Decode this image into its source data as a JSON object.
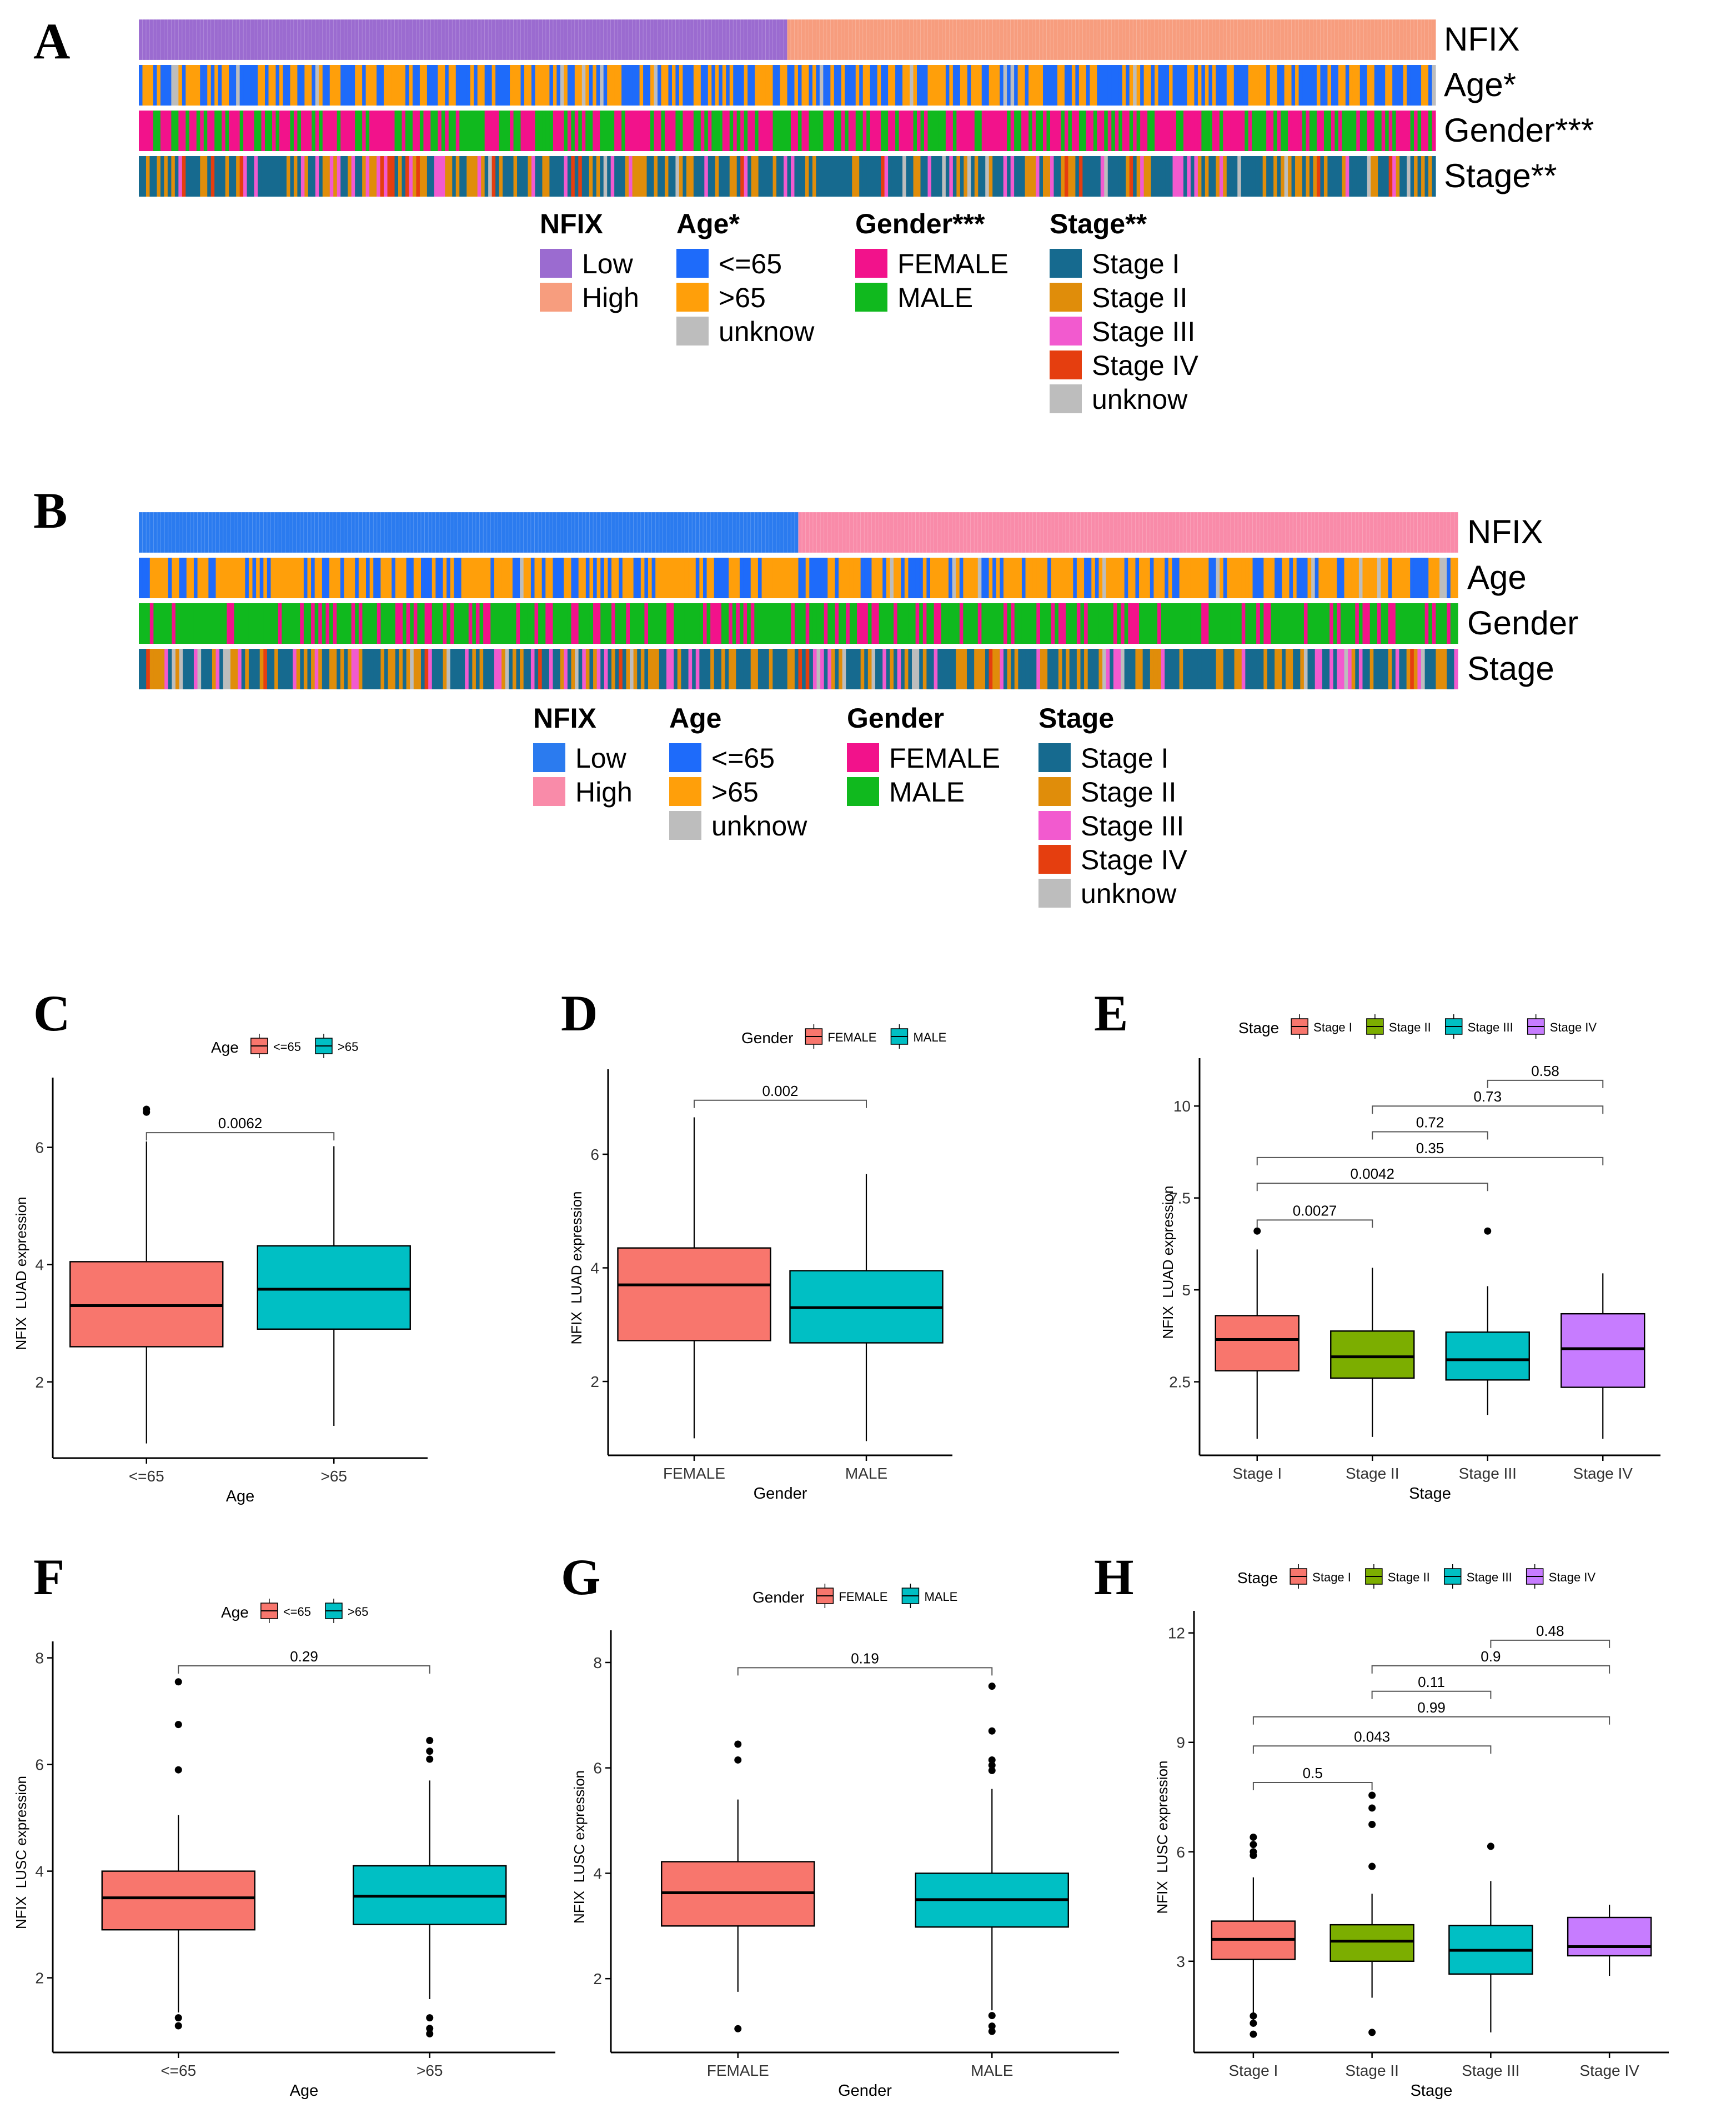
{
  "figure": {
    "panel_letters": [
      "A",
      "B",
      "C",
      "D",
      "E",
      "F",
      "G",
      "H"
    ]
  },
  "colors": {
    "nfix_low_A": "#9B6BD0",
    "nfix_high_A": "#F79D7E",
    "nfix_low_B": "#2B7BEF",
    "nfix_high_B": "#F98BA9",
    "age_le65": "#1E6BFA",
    "age_gt65": "#FF9F0A",
    "unknow": "#BDBDBD",
    "female": "#F2128B",
    "male": "#10B91E",
    "stage1": "#166A8F",
    "stage2": "#E08D0A",
    "stage3": "#F25ACF",
    "stage4": "#E53E0F",
    "box_red": "#F8766D",
    "box_teal": "#00BFC4",
    "box_green": "#7CAE00",
    "box_purple": "#C77CFF"
  },
  "heatmaps": [
    {
      "id": "A",
      "tracks": [
        "NFIX",
        "Age*",
        "Gender***",
        "Stage**"
      ],
      "legend": [
        {
          "title": "NFIX",
          "items": [
            "Low",
            "High"
          ],
          "colors": [
            "#9B6BD0",
            "#F79D7E"
          ]
        },
        {
          "title": "Age*",
          "items": [
            "<=65",
            ">65",
            "unknow"
          ],
          "colors": [
            "#1E6BFA",
            "#FF9F0A",
            "#BDBDBD"
          ]
        },
        {
          "title": "Gender***",
          "items": [
            "FEMALE",
            "MALE"
          ],
          "colors": [
            "#F2128B",
            "#10B91E"
          ]
        },
        {
          "title": "Stage**",
          "items": [
            "Stage I",
            "Stage II",
            "Stage III",
            "Stage IV",
            "unknow"
          ],
          "colors": [
            "#166A8F",
            "#E08D0A",
            "#F25ACF",
            "#E53E0F",
            "#BDBDBD"
          ]
        }
      ]
    },
    {
      "id": "B",
      "tracks": [
        "NFIX",
        "Age",
        "Gender",
        "Stage"
      ],
      "legend": [
        {
          "title": "NFIX",
          "items": [
            "Low",
            "High"
          ],
          "colors": [
            "#2B7BEF",
            "#F98BA9"
          ]
        },
        {
          "title": "Age",
          "items": [
            "<=65",
            ">65",
            "unknow"
          ],
          "colors": [
            "#1E6BFA",
            "#FF9F0A",
            "#BDBDBD"
          ]
        },
        {
          "title": "Gender",
          "items": [
            "FEMALE",
            "MALE"
          ],
          "colors": [
            "#F2128B",
            "#10B91E"
          ]
        },
        {
          "title": "Stage",
          "items": [
            "Stage I",
            "Stage II",
            "Stage III",
            "Stage IV",
            "unknow"
          ],
          "colors": [
            "#166A8F",
            "#E08D0A",
            "#F25ACF",
            "#E53E0F",
            "#BDBDBD"
          ]
        }
      ]
    }
  ],
  "chart_data": [
    {
      "panel": "C",
      "type": "box",
      "title": "",
      "legend_title": "Age",
      "legend": [
        "<=65",
        ">65"
      ],
      "categories": [
        "<=65",
        ">65"
      ],
      "xlabel": "Age",
      "ylabel": "NFIX  LUAD expression",
      "ylim": [
        0.7,
        7.0
      ],
      "yticks": [
        2,
        4,
        6
      ],
      "boxes": [
        {
          "min": 0.95,
          "q1": 2.6,
          "median": 3.3,
          "q3": 4.05,
          "max": 6.1,
          "outliers": [
            6.65,
            6.6
          ]
        },
        {
          "min": 1.25,
          "q1": 2.9,
          "median": 3.58,
          "q3": 4.32,
          "max": 6.02,
          "outliers": []
        }
      ],
      "comparisons": [
        {
          "from": 0,
          "to": 1,
          "label": "0.0062",
          "y": 6.25
        }
      ]
    },
    {
      "panel": "D",
      "type": "box",
      "title": "",
      "legend_title": "Gender",
      "legend": [
        "FEMALE",
        "MALE"
      ],
      "categories": [
        "FEMALE",
        "MALE"
      ],
      "xlabel": "Gender",
      "ylabel": "NFIX  LUAD expression",
      "ylim": [
        0.7,
        7.3
      ],
      "yticks": [
        2,
        4,
        6
      ],
      "boxes": [
        {
          "min": 1.0,
          "q1": 2.72,
          "median": 3.7,
          "q3": 4.35,
          "max": 6.65,
          "outliers": []
        },
        {
          "min": 0.95,
          "q1": 2.68,
          "median": 3.3,
          "q3": 3.95,
          "max": 5.65,
          "outliers": []
        }
      ],
      "comparisons": [
        {
          "from": 0,
          "to": 1,
          "label": "0.002",
          "y": 6.95
        }
      ]
    },
    {
      "panel": "E",
      "type": "box",
      "title": "",
      "legend_title": "Stage",
      "legend": [
        "Stage I",
        "Stage II",
        "Stage III",
        "Stage IV"
      ],
      "categories": [
        "Stage I",
        "Stage II",
        "Stage III",
        "Stage IV"
      ],
      "xlabel": "Stage",
      "ylabel": "NFIX  LUAD expression",
      "ylim": [
        0.5,
        11.0
      ],
      "yticks": [
        2.5,
        5.0,
        7.5,
        10.0
      ],
      "boxes": [
        {
          "min": 0.95,
          "q1": 2.8,
          "median": 3.65,
          "q3": 4.3,
          "max": 6.1,
          "outliers": [
            6.6
          ]
        },
        {
          "min": 1.0,
          "q1": 2.6,
          "median": 3.18,
          "q3": 3.88,
          "max": 5.6,
          "outliers": []
        },
        {
          "min": 1.6,
          "q1": 2.55,
          "median": 3.1,
          "q3": 3.85,
          "max": 5.1,
          "outliers": [
            6.6
          ]
        },
        {
          "min": 0.95,
          "q1": 2.35,
          "median": 3.4,
          "q3": 4.35,
          "max": 5.45,
          "outliers": []
        }
      ],
      "comparisons": [
        {
          "from": 0,
          "to": 1,
          "label": "0.0027",
          "y": 6.9
        },
        {
          "from": 0,
          "to": 2,
          "label": "0.0042",
          "y": 7.9
        },
        {
          "from": 0,
          "to": 3,
          "label": "0.35",
          "y": 8.6
        },
        {
          "from": 1,
          "to": 2,
          "label": "0.72",
          "y": 9.3
        },
        {
          "from": 1,
          "to": 3,
          "label": "0.73",
          "y": 10.0
        },
        {
          "from": 2,
          "to": 3,
          "label": "0.58",
          "y": 10.7
        }
      ]
    },
    {
      "panel": "F",
      "type": "box",
      "title": "",
      "legend_title": "Age",
      "legend": [
        "<=65",
        ">65"
      ],
      "categories": [
        "<=65",
        ">65"
      ],
      "xlabel": "Age",
      "ylabel": "NFIX  LUSC expression",
      "ylim": [
        0.6,
        8.1
      ],
      "yticks": [
        2,
        4,
        6,
        8
      ],
      "boxes": [
        {
          "min": 1.35,
          "q1": 2.9,
          "median": 3.5,
          "q3": 4.0,
          "max": 5.05,
          "outliers": [
            7.55,
            6.75,
            5.9,
            1.25,
            1.1
          ]
        },
        {
          "min": 1.6,
          "q1": 3.0,
          "median": 3.53,
          "q3": 4.1,
          "max": 5.7,
          "outliers": [
            6.45,
            6.25,
            6.1,
            1.25,
            1.05,
            0.95
          ]
        }
      ],
      "comparisons": [
        {
          "from": 0,
          "to": 1,
          "label": "0.29",
          "y": 7.85
        }
      ]
    },
    {
      "panel": "G",
      "type": "box",
      "title": "",
      "legend_title": "Gender",
      "legend": [
        "FEMALE",
        "MALE"
      ],
      "categories": [
        "FEMALE",
        "MALE"
      ],
      "xlabel": "Gender",
      "ylabel": "NFIX  LUSC expression",
      "ylim": [
        0.6,
        8.4
      ],
      "yticks": [
        2,
        4,
        6,
        8
      ],
      "boxes": [
        {
          "min": 1.75,
          "q1": 3.0,
          "median": 3.63,
          "q3": 4.22,
          "max": 5.4,
          "outliers": [
            6.45,
            6.15,
            1.05
          ]
        },
        {
          "min": 1.4,
          "q1": 2.98,
          "median": 3.5,
          "q3": 4.0,
          "max": 5.6,
          "outliers": [
            7.55,
            6.7,
            6.15,
            6.05,
            5.95,
            1.3,
            1.1,
            1.0
          ]
        }
      ],
      "comparisons": [
        {
          "from": 0,
          "to": 1,
          "label": "0.19",
          "y": 7.9
        }
      ]
    },
    {
      "panel": "H",
      "type": "box",
      "title": "",
      "legend_title": "Stage",
      "legend": [
        "Stage I",
        "Stage II",
        "Stage III",
        "Stage IV"
      ],
      "categories": [
        "Stage I",
        "Stage II",
        "Stage III",
        "Stage IV"
      ],
      "xlabel": "Stage",
      "ylabel": "NFIX  LUSC expression",
      "ylim": [
        0.5,
        12.3
      ],
      "yticks": [
        3,
        6,
        9,
        12
      ],
      "boxes": [
        {
          "min": 1.35,
          "q1": 3.05,
          "median": 3.6,
          "q3": 4.1,
          "max": 5.3,
          "outliers": [
            6.4,
            6.2,
            6.0,
            5.9,
            1.5,
            1.3,
            1.0
          ]
        },
        {
          "min": 2.0,
          "q1": 3.0,
          "median": 3.55,
          "q3": 4.0,
          "max": 4.85,
          "outliers": [
            7.55,
            7.2,
            6.75,
            5.6,
            1.05
          ]
        },
        {
          "min": 1.05,
          "q1": 2.65,
          "median": 3.3,
          "q3": 3.98,
          "max": 5.2,
          "outliers": [
            6.15
          ]
        },
        {
          "min": 2.6,
          "q1": 3.15,
          "median": 3.4,
          "q3": 4.2,
          "max": 4.55,
          "outliers": []
        }
      ],
      "comparisons": [
        {
          "from": 0,
          "to": 1,
          "label": "0.5",
          "y": 7.9
        },
        {
          "from": 0,
          "to": 2,
          "label": "0.043",
          "y": 8.9
        },
        {
          "from": 0,
          "to": 3,
          "label": "0.99",
          "y": 9.7
        },
        {
          "from": 1,
          "to": 2,
          "label": "0.11",
          "y": 10.4
        },
        {
          "from": 1,
          "to": 3,
          "label": "0.9",
          "y": 11.1
        },
        {
          "from": 2,
          "to": 3,
          "label": "0.48",
          "y": 11.8
        }
      ]
    }
  ]
}
